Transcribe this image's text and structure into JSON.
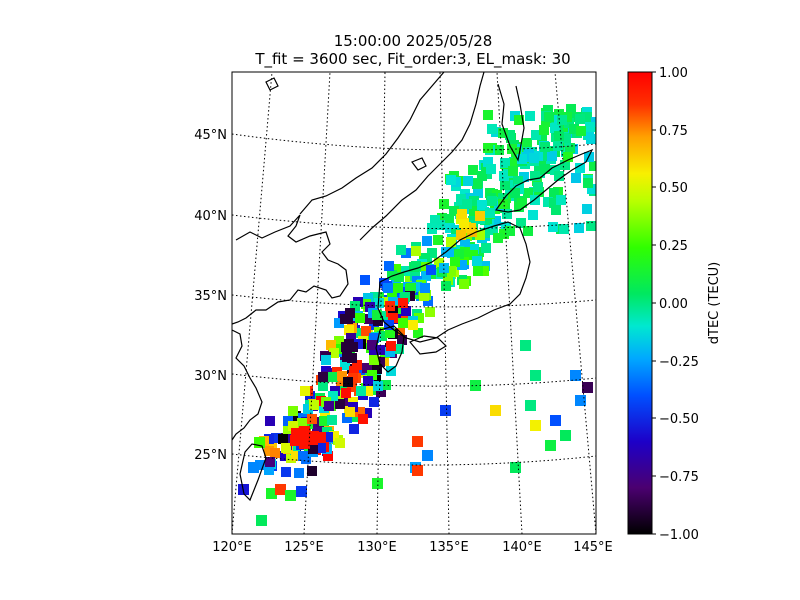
{
  "title": {
    "line1": "15:00:00 2025/05/28",
    "line2": "T_fit = 3600 sec, Fit_order:3, EL_mask: 30"
  },
  "map": {
    "lon_labels": [
      "120°E",
      "125°E",
      "130°E",
      "135°E",
      "140°E",
      "145°E"
    ],
    "lat_labels": [
      "25°N",
      "30°N",
      "35°N",
      "40°N",
      "45°N"
    ],
    "graticule_style": "dotted",
    "region": "Japan and East Asia (120°E–145°E, 20°N–48°N)"
  },
  "colorbar": {
    "label": "dTEC (TECU)",
    "ticks": [
      "1.00",
      "0.75",
      "0.50",
      "0.25",
      "0.00",
      "−0.25",
      "−0.50",
      "−0.75",
      "−1.00"
    ],
    "colormap": "nipy_spectral-like",
    "vmin": -1.0,
    "vmax": 1.0
  }
}
